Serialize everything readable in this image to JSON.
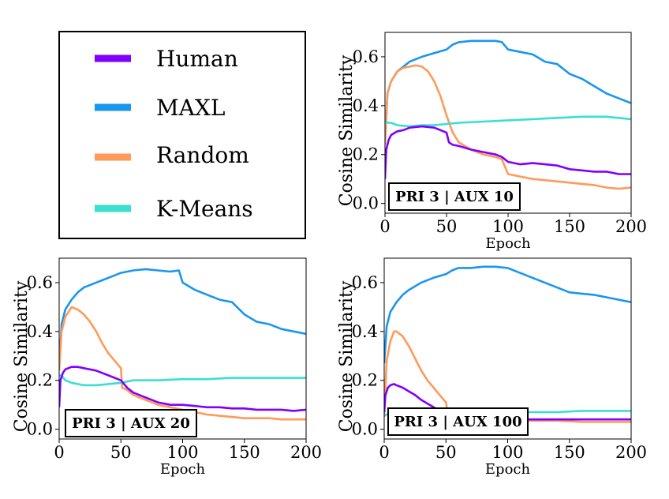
{
  "legend": {
    "items": [
      {
        "label": "Human",
        "color": "#7f00ff"
      },
      {
        "label": "MAXL",
        "color": "#1996f0"
      },
      {
        "label": "Random",
        "color": "#ff9a5a"
      },
      {
        "label": "K-Means",
        "color": "#3adfd0"
      }
    ]
  },
  "chart_data": [
    {
      "type": "line",
      "panel_label": "PRI 3 | AUX 10",
      "xlabel": "Epoch",
      "ylabel": "Cosine Similarity",
      "xlim": [
        0,
        200
      ],
      "ylim": [
        -0.04,
        0.7
      ],
      "xticks": [
        0,
        50,
        100,
        150,
        200
      ],
      "yticks": [
        0.0,
        0.2,
        0.4,
        0.6
      ],
      "grid": false,
      "series": [
        {
          "name": "MAXL",
          "color": "#1996f0",
          "x": [
            0,
            2,
            5,
            10,
            15,
            20,
            30,
            40,
            50,
            55,
            60,
            70,
            80,
            90,
            95,
            100,
            110,
            120,
            130,
            140,
            150,
            160,
            170,
            180,
            190,
            200
          ],
          "y": [
            0.24,
            0.45,
            0.5,
            0.54,
            0.56,
            0.58,
            0.6,
            0.615,
            0.63,
            0.65,
            0.66,
            0.665,
            0.665,
            0.665,
            0.66,
            0.63,
            0.62,
            0.61,
            0.58,
            0.57,
            0.53,
            0.51,
            0.48,
            0.45,
            0.43,
            0.41
          ]
        },
        {
          "name": "Random",
          "color": "#ff9a5a",
          "x": [
            0,
            2,
            5,
            10,
            15,
            20,
            25,
            30,
            35,
            40,
            45,
            50,
            55,
            60,
            70,
            80,
            90,
            95,
            100,
            110,
            120,
            130,
            140,
            150,
            160,
            170,
            180,
            190,
            200
          ],
          "y": [
            0.24,
            0.45,
            0.5,
            0.54,
            0.555,
            0.56,
            0.565,
            0.56,
            0.54,
            0.5,
            0.44,
            0.36,
            0.29,
            0.25,
            0.22,
            0.2,
            0.19,
            0.18,
            0.12,
            0.11,
            0.1,
            0.095,
            0.09,
            0.085,
            0.08,
            0.075,
            0.065,
            0.06,
            0.065
          ]
        },
        {
          "name": "K-Means",
          "color": "#3adfd0",
          "x": [
            0,
            2,
            5,
            10,
            20,
            30,
            40,
            50,
            60,
            80,
            100,
            120,
            140,
            160,
            180,
            200
          ],
          "y": [
            0.34,
            0.33,
            0.33,
            0.32,
            0.315,
            0.32,
            0.32,
            0.325,
            0.33,
            0.335,
            0.34,
            0.345,
            0.35,
            0.355,
            0.355,
            0.345
          ]
        },
        {
          "name": "Human",
          "color": "#7f00ff",
          "x": [
            0,
            1,
            3,
            5,
            10,
            15,
            20,
            30,
            40,
            50,
            52,
            55,
            60,
            70,
            80,
            90,
            95,
            100,
            110,
            120,
            130,
            140,
            150,
            160,
            170,
            180,
            190,
            200
          ],
          "y": [
            0.1,
            0.22,
            0.26,
            0.28,
            0.295,
            0.3,
            0.31,
            0.315,
            0.31,
            0.29,
            0.25,
            0.24,
            0.235,
            0.22,
            0.21,
            0.2,
            0.19,
            0.17,
            0.16,
            0.165,
            0.16,
            0.155,
            0.14,
            0.135,
            0.13,
            0.13,
            0.12,
            0.12
          ]
        }
      ]
    },
    {
      "type": "line",
      "panel_label": "PRI 3 | AUX 20",
      "xlabel": "Epoch",
      "ylabel": "Cosine Similarity",
      "xlim": [
        0,
        200
      ],
      "ylim": [
        -0.04,
        0.7
      ],
      "xticks": [
        0,
        50,
        100,
        150,
        200
      ],
      "yticks": [
        0.0,
        0.2,
        0.4,
        0.6
      ],
      "grid": false,
      "series": [
        {
          "name": "MAXL",
          "color": "#1996f0",
          "x": [
            0,
            2,
            5,
            10,
            15,
            20,
            30,
            40,
            50,
            60,
            70,
            80,
            90,
            97,
            100,
            110,
            120,
            130,
            140,
            150,
            160,
            170,
            180,
            190,
            200
          ],
          "y": [
            0.25,
            0.43,
            0.49,
            0.53,
            0.56,
            0.58,
            0.6,
            0.62,
            0.64,
            0.65,
            0.655,
            0.65,
            0.645,
            0.65,
            0.6,
            0.57,
            0.55,
            0.53,
            0.52,
            0.47,
            0.44,
            0.43,
            0.41,
            0.4,
            0.39
          ]
        },
        {
          "name": "Random",
          "color": "#ff9a5a",
          "x": [
            0,
            2,
            5,
            10,
            15,
            20,
            25,
            30,
            35,
            40,
            45,
            50,
            51,
            55,
            60,
            70,
            80,
            90,
            100,
            110,
            120,
            130,
            140,
            150,
            160,
            170,
            180,
            190,
            200
          ],
          "y": [
            0.24,
            0.4,
            0.46,
            0.5,
            0.49,
            0.47,
            0.44,
            0.4,
            0.35,
            0.31,
            0.28,
            0.25,
            0.17,
            0.16,
            0.14,
            0.12,
            0.1,
            0.09,
            0.08,
            0.07,
            0.06,
            0.055,
            0.05,
            0.045,
            0.045,
            0.045,
            0.04,
            0.04,
            0.04
          ]
        },
        {
          "name": "K-Means",
          "color": "#3adfd0",
          "x": [
            0,
            2,
            5,
            10,
            20,
            30,
            40,
            50,
            60,
            80,
            100,
            120,
            140,
            160,
            180,
            200
          ],
          "y": [
            0.22,
            0.22,
            0.2,
            0.19,
            0.18,
            0.18,
            0.185,
            0.19,
            0.2,
            0.2,
            0.205,
            0.205,
            0.21,
            0.21,
            0.21,
            0.21
          ]
        },
        {
          "name": "Human",
          "color": "#7f00ff",
          "x": [
            0,
            1,
            3,
            5,
            10,
            15,
            20,
            30,
            40,
            50,
            55,
            60,
            70,
            80,
            90,
            100,
            110,
            120,
            130,
            140,
            150,
            160,
            170,
            180,
            190,
            200
          ],
          "y": [
            0.09,
            0.2,
            0.23,
            0.245,
            0.255,
            0.255,
            0.25,
            0.24,
            0.22,
            0.2,
            0.17,
            0.15,
            0.13,
            0.11,
            0.1,
            0.1,
            0.095,
            0.09,
            0.09,
            0.085,
            0.085,
            0.08,
            0.08,
            0.08,
            0.075,
            0.08
          ]
        }
      ]
    },
    {
      "type": "line",
      "panel_label": "PRI 3 | AUX 100",
      "xlabel": "Epoch",
      "ylabel": "Cosine Similarity",
      "xlim": [
        0,
        200
      ],
      "ylim": [
        -0.04,
        0.7
      ],
      "xticks": [
        0,
        50,
        100,
        150,
        200
      ],
      "yticks": [
        0.0,
        0.2,
        0.4,
        0.6
      ],
      "grid": false,
      "series": [
        {
          "name": "MAXL",
          "color": "#1996f0",
          "x": [
            0,
            2,
            5,
            10,
            15,
            20,
            30,
            40,
            50,
            55,
            60,
            70,
            80,
            90,
            100,
            110,
            120,
            130,
            140,
            150,
            160,
            170,
            180,
            190,
            200
          ],
          "y": [
            0.27,
            0.42,
            0.48,
            0.52,
            0.55,
            0.57,
            0.6,
            0.62,
            0.635,
            0.65,
            0.66,
            0.66,
            0.665,
            0.665,
            0.66,
            0.64,
            0.62,
            0.6,
            0.58,
            0.56,
            0.555,
            0.55,
            0.54,
            0.53,
            0.52
          ]
        },
        {
          "name": "Random",
          "color": "#ff9a5a",
          "x": [
            0,
            2,
            5,
            8,
            10,
            15,
            20,
            25,
            30,
            35,
            40,
            45,
            50,
            51,
            55,
            60,
            70,
            80,
            90,
            100,
            120,
            140,
            160,
            180,
            200
          ],
          "y": [
            0.05,
            0.28,
            0.36,
            0.4,
            0.4,
            0.38,
            0.34,
            0.29,
            0.24,
            0.2,
            0.17,
            0.14,
            0.11,
            0.08,
            0.07,
            0.065,
            0.055,
            0.05,
            0.045,
            0.04,
            0.035,
            0.035,
            0.03,
            0.03,
            0.03
          ]
        },
        {
          "name": "K-Means",
          "color": "#3adfd0",
          "x": [
            0,
            2,
            5,
            10,
            20,
            40,
            60,
            80,
            100,
            120,
            140,
            160,
            180,
            200
          ],
          "y": [
            0.055,
            0.06,
            0.06,
            0.06,
            0.06,
            0.065,
            0.065,
            0.07,
            0.07,
            0.07,
            0.07,
            0.075,
            0.075,
            0.075
          ]
        },
        {
          "name": "Human",
          "color": "#7f00ff",
          "x": [
            0,
            1,
            3,
            5,
            8,
            10,
            15,
            20,
            25,
            30,
            35,
            40,
            45,
            50,
            55,
            60,
            70,
            80,
            100,
            120,
            140,
            160,
            180,
            200
          ],
          "y": [
            0.07,
            0.14,
            0.17,
            0.18,
            0.185,
            0.18,
            0.17,
            0.155,
            0.14,
            0.12,
            0.105,
            0.09,
            0.075,
            0.065,
            0.06,
            0.055,
            0.05,
            0.045,
            0.04,
            0.04,
            0.04,
            0.04,
            0.04,
            0.04
          ]
        }
      ]
    }
  ]
}
